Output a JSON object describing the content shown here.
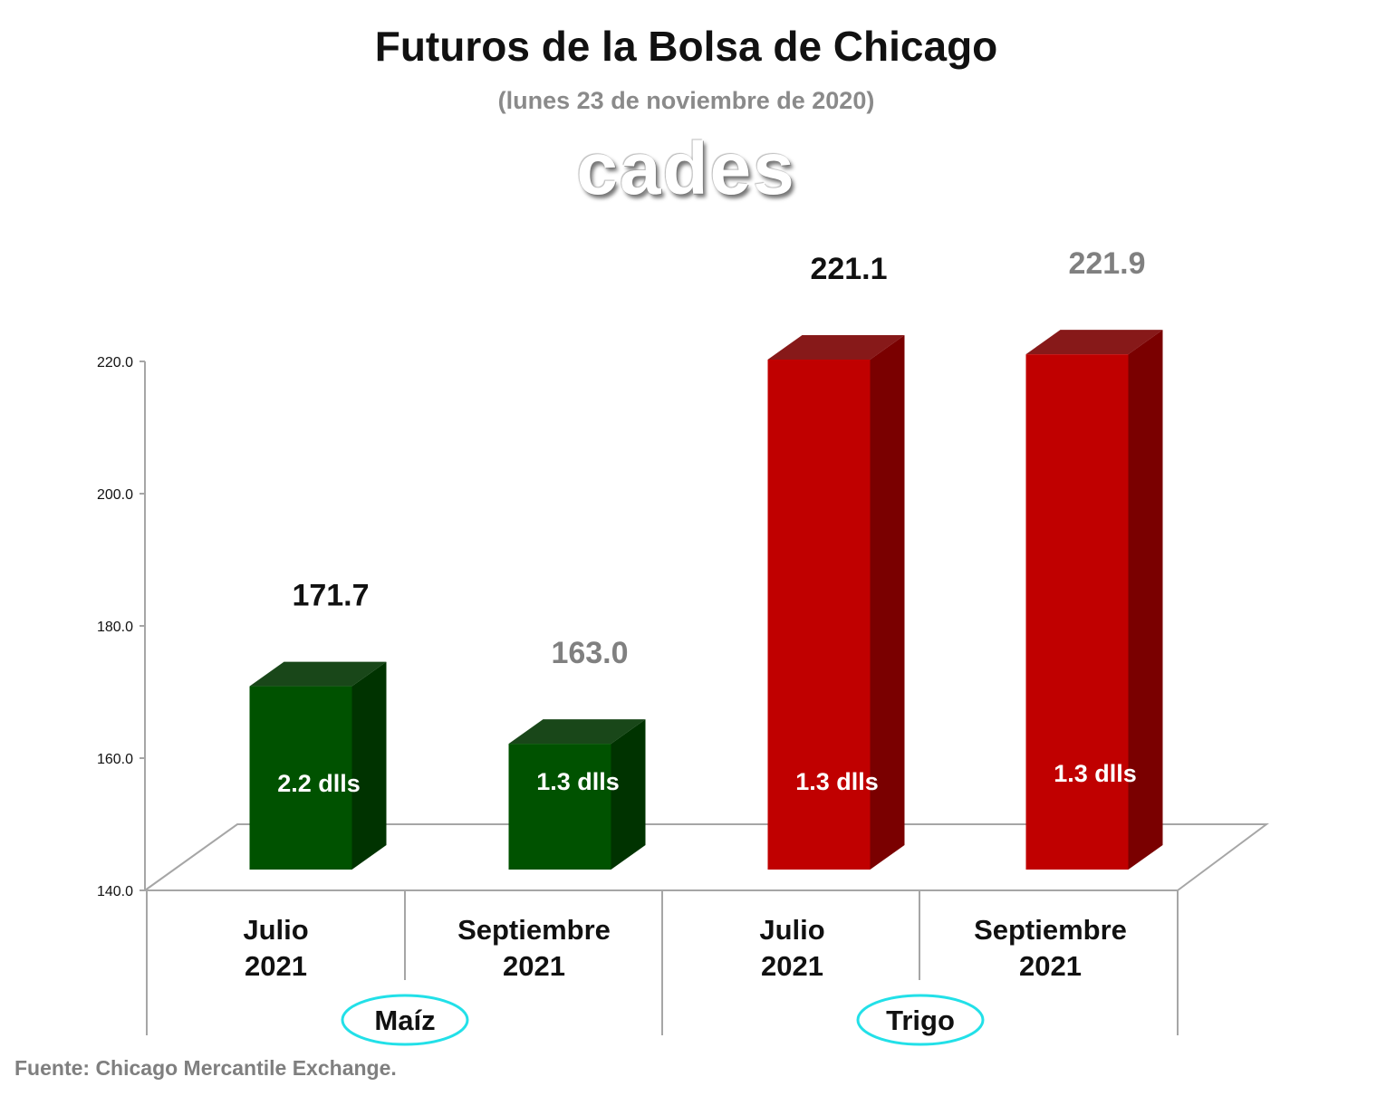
{
  "title": "Futuros de la Bolsa de Chicago",
  "subtitle": "(lunes 23 de noviembre de 2020)",
  "logo_text": "cades",
  "source": "Fuente: Chicago Mercantile Exchange.",
  "chart_data": {
    "type": "bar",
    "categories": [
      "Julio\n2021",
      "Septiembre\n2021",
      "Julio\n2021",
      "Septiembre\n2021"
    ],
    "groups": [
      {
        "name": "Maíz",
        "categories": [
          0,
          1
        ]
      },
      {
        "name": "Trigo",
        "categories": [
          2,
          3
        ]
      }
    ],
    "values": [
      171.7,
      163.0,
      221.1,
      221.9
    ],
    "value_labels": [
      "171.7",
      "163.0",
      "221.1",
      "221.9"
    ],
    "inner_labels": [
      "2.2 dlls",
      "1.3 dlls",
      "1.3 dlls",
      "1.3 dlls"
    ],
    "ylim": [
      140,
      220
    ],
    "yticks": [
      "140.0",
      "160.0",
      "180.0",
      "200.0",
      "220.0"
    ],
    "colors": {
      "maiz_front": "#005200",
      "maiz_side": "#003300",
      "trigo_front": "#c00000",
      "trigo_side": "#7a0000",
      "label_dark": "#111111",
      "label_gray": "#808080"
    }
  }
}
